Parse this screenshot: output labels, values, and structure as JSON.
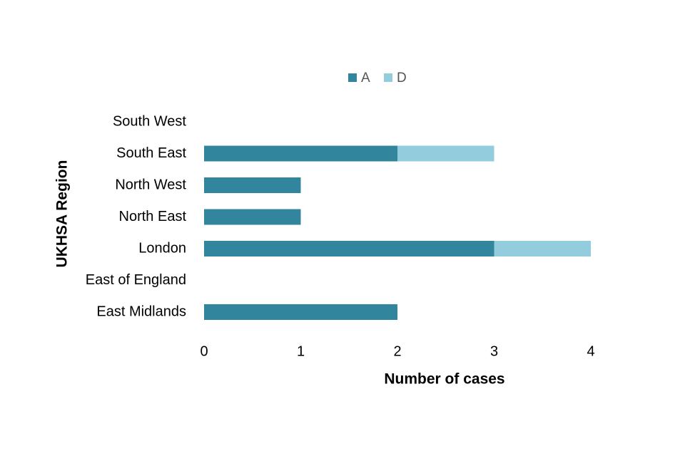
{
  "chart_data": {
    "type": "stacked-bar-horizontal",
    "x_label": "Number of cases",
    "y_label": "UKHSA Region",
    "categories": [
      "South West",
      "South East",
      "North West",
      "North East",
      "London",
      "East of England",
      "East Midlands"
    ],
    "series": [
      {
        "name": "A",
        "color": "#31859c",
        "values": [
          0,
          2,
          1,
          1,
          3,
          0,
          2
        ]
      },
      {
        "name": "D",
        "color": "#93cddd",
        "values": [
          0,
          1,
          0,
          0,
          1,
          0,
          0
        ]
      }
    ],
    "xlim": [
      0,
      4
    ],
    "xticks": [
      0,
      1,
      2,
      3,
      4
    ],
    "grid": false,
    "legend": "top"
  }
}
